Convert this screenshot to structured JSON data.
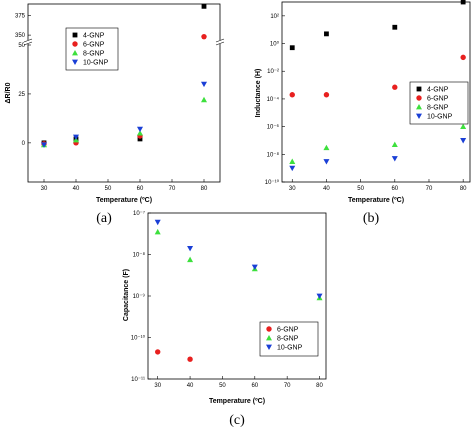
{
  "colors": {
    "4-GNP": "#000000",
    "6-GNP": "#e8201f",
    "8-GNP": "#3de03d",
    "10-GNP": "#1a3fd6"
  },
  "markers": {
    "4-GNP": "square",
    "6-GNP": "circle",
    "8-GNP": "triangle-up",
    "10-GNP": "triangle-down"
  },
  "chart_data": [
    {
      "type": "scatter",
      "caption": "(a)",
      "ylabel": "ΔR/R0",
      "xlabel": "Temperature (ºC)",
      "xlim": [
        25,
        85
      ],
      "xticks": [
        30,
        40,
        50,
        60,
        70,
        80
      ],
      "ylim": [
        -20,
        390
      ],
      "yaxis_break": [
        50,
        345
      ],
      "yticks": [
        0,
        25,
        50,
        350,
        375
      ],
      "legend_position": "top-left",
      "series": [
        {
          "name": "4-GNP",
          "x": [
            30,
            40,
            60,
            80
          ],
          "y": [
            0,
            2,
            2,
            387
          ]
        },
        {
          "name": "6-GNP",
          "x": [
            30,
            40,
            60,
            80
          ],
          "y": [
            -0.5,
            0,
            3.5,
            348
          ]
        },
        {
          "name": "8-GNP",
          "x": [
            30,
            40,
            60,
            80
          ],
          "y": [
            -1,
            1.5,
            5,
            22
          ]
        },
        {
          "name": "10-GNP",
          "x": [
            30,
            40,
            60,
            80
          ],
          "y": [
            -1,
            3,
            7,
            30
          ]
        }
      ]
    },
    {
      "type": "scatter",
      "caption": "(b)",
      "ylabel": "Inductance (H)",
      "xlabel": "Temperature (ºC)",
      "xlim": [
        27,
        82
      ],
      "xticks": [
        30,
        40,
        50,
        60,
        70,
        80
      ],
      "yscale": "log",
      "ylim": [
        1e-10,
        1000.0
      ],
      "yticks": [
        1e-10,
        1e-08,
        1e-06,
        0.0001,
        0.01,
        1,
        100.0
      ],
      "ytick_labels": [
        "10⁻¹⁰",
        "10⁻⁸",
        "10⁻⁶",
        "10⁻⁴",
        "10⁻²",
        "10⁰",
        "10²"
      ],
      "legend_position": "center-right",
      "series": [
        {
          "name": "4-GNP",
          "x": [
            30,
            40,
            60,
            80
          ],
          "y": [
            0.5,
            5,
            15,
            1000
          ]
        },
        {
          "name": "6-GNP",
          "x": [
            30,
            40,
            60,
            80
          ],
          "y": [
            0.0002,
            0.0002,
            0.0007,
            0.1
          ]
        },
        {
          "name": "8-GNP",
          "x": [
            30,
            40,
            60,
            80
          ],
          "y": [
            3e-09,
            3e-08,
            5e-08,
            1e-06
          ]
        },
        {
          "name": "10-GNP",
          "x": [
            30,
            40,
            60,
            80
          ],
          "y": [
            1e-09,
            3e-09,
            5e-09,
            1e-07
          ]
        }
      ]
    },
    {
      "type": "scatter",
      "caption": "(c)",
      "ylabel": "Capacitance (F)",
      "xlabel": "Temperature (ºC)",
      "xlim": [
        27,
        82
      ],
      "xticks": [
        30,
        40,
        50,
        60,
        70,
        80
      ],
      "yscale": "log",
      "ylim": [
        1e-11,
        1e-07
      ],
      "yticks": [
        1e-11,
        1e-10,
        1e-09,
        1e-08,
        1e-07
      ],
      "ytick_labels": [
        "10⁻¹¹",
        "10⁻¹⁰",
        "10⁻⁹",
        "10⁻⁸",
        "10⁻⁷"
      ],
      "legend_position": "bottom-left",
      "series": [
        {
          "name": "6-GNP",
          "x": [
            30,
            40
          ],
          "y": [
            4.5e-11,
            3e-11
          ]
        },
        {
          "name": "8-GNP",
          "x": [
            30,
            40,
            60,
            80
          ],
          "y": [
            3.5e-08,
            7.5e-09,
            4.5e-09,
            9e-10
          ]
        },
        {
          "name": "10-GNP",
          "x": [
            30,
            40,
            60,
            80
          ],
          "y": [
            6e-08,
            1.4e-08,
            5e-09,
            1e-09
          ]
        }
      ]
    }
  ]
}
